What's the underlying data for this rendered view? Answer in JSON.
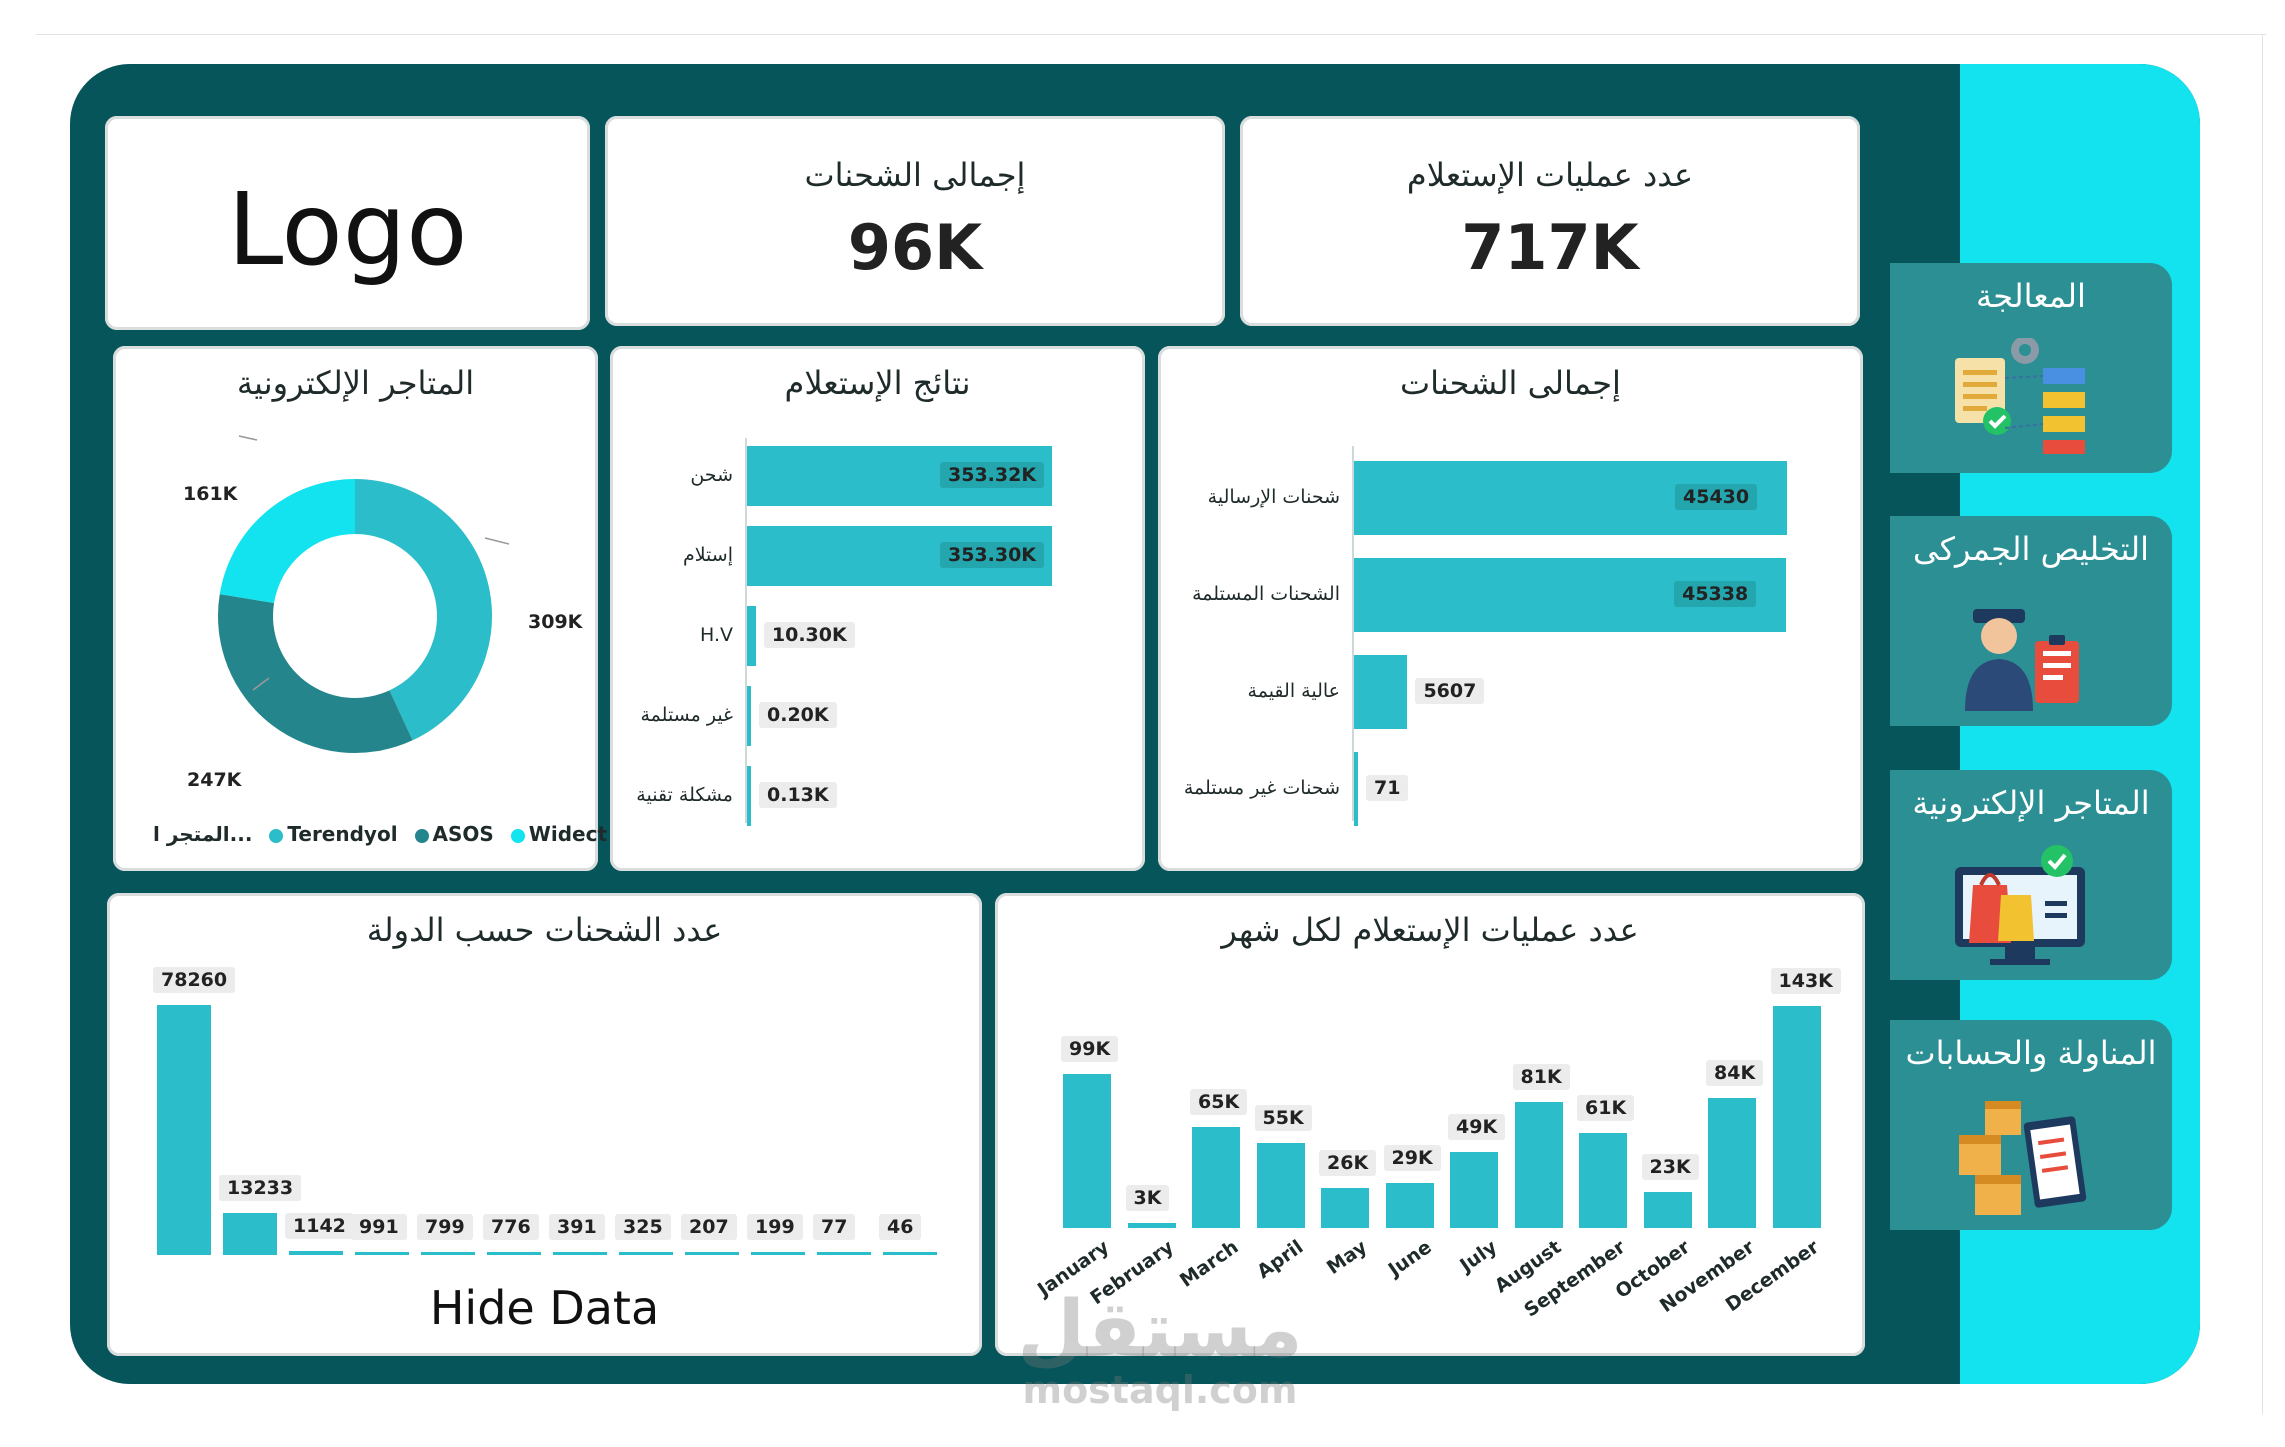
{
  "logo": "Logo",
  "kpis": [
    {
      "title": "إجمالى الشحنات",
      "value": "96K"
    },
    {
      "title": "عدد عمليات الإستعلام",
      "value": "717K"
    }
  ],
  "sidebar": [
    {
      "label": "المعالجة",
      "icon": "processing-icon"
    },
    {
      "label": "التخليص الجمركى",
      "icon": "customs-officer-icon"
    },
    {
      "label": "المتاجر الإلكترونية",
      "icon": "online-store-icon"
    },
    {
      "label": "المناولة والحسابات",
      "icon": "handling-boxes-icon"
    }
  ],
  "colors": {
    "frame": "#05555a",
    "sidepanel": "#12e3ee",
    "bar": "#2bbdc9",
    "widect": "#12e3ee",
    "asos": "#24868c",
    "terendyol": "#2bbdc9"
  },
  "stores_chart": {
    "title": "المتاجر الإلكترونية",
    "type": "pie",
    "slices": [
      {
        "name": "Terendyol",
        "label": "309K",
        "value": 309
      },
      {
        "name": "ASOS",
        "label": "247K",
        "value": 247
      },
      {
        "name": "Widect",
        "label": "161K",
        "value": 161
      }
    ],
    "legend_title": "المتجر ا...",
    "legend": [
      "Terendyol",
      "ASOS",
      "Widect"
    ]
  },
  "inquiry_results": {
    "title": "نتائج الإستعلام",
    "type": "bar",
    "categories": [
      "شحن",
      "إستلام",
      "H.V",
      "غير مستلمة",
      "مشكلة تقنية"
    ],
    "values": [
      353.32,
      353.3,
      10.3,
      0.2,
      0.13
    ],
    "labels": [
      "353.32K",
      "353.30K",
      "10.30K",
      "0.20K",
      "0.13K"
    ]
  },
  "shipments_total": {
    "title": "إجمالى الشحنات",
    "type": "bar",
    "categories": [
      "شحنات الإرسالية",
      "الشحنات المستلمة",
      "عالية القيمة",
      "شحنات غير مستلمة"
    ],
    "values": [
      45430,
      45338,
      5607,
      71
    ],
    "labels": [
      "45430",
      "45338",
      "5607",
      "71"
    ]
  },
  "by_country": {
    "title": "عدد الشحنات حسب الدولة",
    "type": "bar",
    "values": [
      78260,
      13233,
      1142,
      991,
      799,
      776,
      391,
      325,
      207,
      199,
      77,
      46
    ],
    "labels": [
      "78260",
      "13233",
      "1142",
      "991",
      "799",
      "776",
      "391",
      "325",
      "207",
      "199",
      "77",
      "46"
    ],
    "hidden_note": "Hide Data"
  },
  "by_month": {
    "title": "عدد عمليات الإستعلام لكل شهر",
    "type": "bar",
    "categories": [
      "January",
      "February",
      "March",
      "April",
      "May",
      "June",
      "July",
      "August",
      "September",
      "October",
      "November",
      "December"
    ],
    "values": [
      99,
      3,
      65,
      55,
      26,
      29,
      49,
      81,
      61,
      23,
      84,
      143
    ],
    "labels": [
      "99K",
      "3K",
      "65K",
      "55K",
      "26K",
      "29K",
      "49K",
      "81K",
      "61K",
      "23K",
      "84K",
      "143K"
    ]
  },
  "watermark": {
    "arabic": "مستقل",
    "latin": "mostaql.com"
  }
}
